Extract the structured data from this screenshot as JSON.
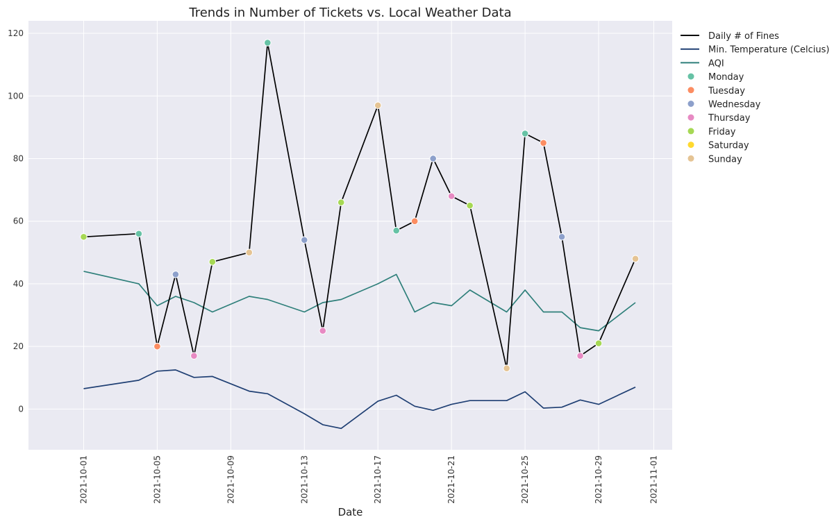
{
  "chart_data": {
    "type": "line",
    "title": "Trends in Number of Tickets vs. Local Weather Data",
    "xlabel": "Date",
    "ylabel": "",
    "xlim": [
      "2021-09-28",
      "2021-11-02"
    ],
    "ylim": [
      -13,
      124
    ],
    "x_ticks": [
      "2021-10-01",
      "2021-10-05",
      "2021-10-09",
      "2021-10-13",
      "2021-10-17",
      "2021-10-21",
      "2021-10-25",
      "2021-10-29",
      "2021-11-01"
    ],
    "y_ticks": [
      0,
      20,
      40,
      60,
      80,
      100,
      120
    ],
    "grid": true,
    "legend_position": "outside-top-right",
    "x": [
      "2021-10-01",
      "2021-10-04",
      "2021-10-05",
      "2021-10-06",
      "2021-10-07",
      "2021-10-08",
      "2021-10-10",
      "2021-10-11",
      "2021-10-13",
      "2021-10-14",
      "2021-10-15",
      "2021-10-17",
      "2021-10-18",
      "2021-10-19",
      "2021-10-20",
      "2021-10-21",
      "2021-10-22",
      "2021-10-24",
      "2021-10-25",
      "2021-10-26",
      "2021-10-27",
      "2021-10-28",
      "2021-10-29",
      "2021-10-31"
    ],
    "series": [
      {
        "name": "Daily # of Fines",
        "color": "#000000",
        "values": [
          55,
          56,
          20,
          43,
          17,
          47,
          50,
          117,
          54,
          25,
          66,
          97,
          57,
          60,
          80,
          68,
          65,
          13,
          88,
          85,
          55,
          17,
          21,
          48
        ]
      },
      {
        "name": "Min. Temperature (Celcius)",
        "color": "#1f3f73",
        "values": [
          6.5,
          9.2,
          12.1,
          12.5,
          10.1,
          10.4,
          5.7,
          4.9,
          -1.5,
          -5.0,
          -6.2,
          2.5,
          4.4,
          0.9,
          -0.4,
          1.5,
          2.7,
          2.7,
          5.5,
          0.3,
          0.6,
          2.9,
          1.5,
          7.0
        ]
      },
      {
        "name": "AQI",
        "color": "#2e7f7a",
        "values": [
          44,
          40,
          33,
          36,
          34,
          31,
          36,
          35,
          31,
          34,
          35,
          40,
          43,
          31,
          34,
          33,
          38,
          31,
          38,
          31,
          31,
          26,
          25,
          34
        ]
      }
    ],
    "weekday_markers": [
      "Friday",
      "Monday",
      "Tuesday",
      "Wednesday",
      "Thursday",
      "Friday",
      "Sunday",
      "Monday",
      "Wednesday",
      "Thursday",
      "Friday",
      "Sunday",
      "Monday",
      "Tuesday",
      "Wednesday",
      "Thursday",
      "Friday",
      "Sunday",
      "Monday",
      "Tuesday",
      "Wednesday",
      "Thursday",
      "Friday",
      "Sunday"
    ],
    "weekday_legend": [
      {
        "name": "Monday",
        "color": "#66c2a5"
      },
      {
        "name": "Tuesday",
        "color": "#fc8d62"
      },
      {
        "name": "Wednesday",
        "color": "#8da0cb"
      },
      {
        "name": "Thursday",
        "color": "#e78ac3"
      },
      {
        "name": "Friday",
        "color": "#a6d854"
      },
      {
        "name": "Saturday",
        "color": "#ffd92f"
      },
      {
        "name": "Sunday",
        "color": "#e5c494"
      }
    ]
  }
}
